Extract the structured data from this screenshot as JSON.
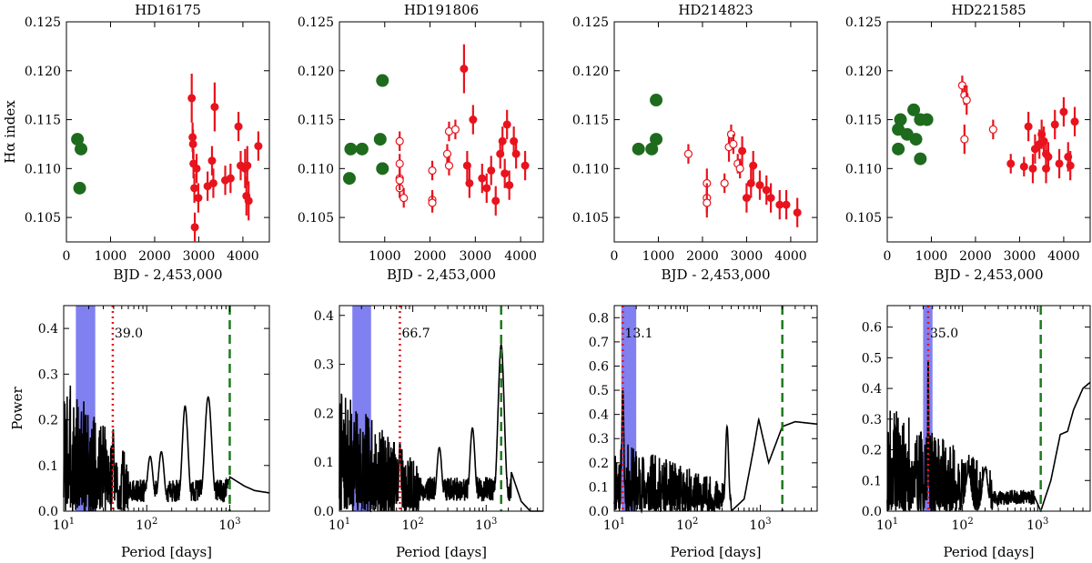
{
  "figure": {
    "colors": {
      "green": "#1e6b1e",
      "red": "#e8131d",
      "band": "#8080f0",
      "period_line": "#e8131d",
      "baseline_line": "#1e7a1e",
      "curve": "#000000"
    }
  },
  "chart_data": [
    {
      "type": "scatter",
      "title": "HD16175",
      "xlabel": "BJD - 2,453,000",
      "ylabel": "Hα index",
      "xlim": [
        0,
        4600
      ],
      "ylim": [
        0.1025,
        0.125
      ],
      "xticks": [
        0,
        1000,
        2000,
        3000,
        4000
      ],
      "xtick_labels": [
        "0",
        "1000",
        "2000",
        "3000",
        "4000"
      ],
      "yticks": [
        0.105,
        0.11,
        0.115,
        0.12,
        0.125
      ],
      "ytick_labels": [
        "0.105",
        "0.110",
        "0.115",
        "0.120",
        "0.125"
      ],
      "series": [
        {
          "name": "green",
          "marker": "filled-large",
          "color": "green",
          "points": [
            [
              250,
              0.113
            ],
            [
              330,
              0.112
            ],
            [
              300,
              0.108
            ]
          ]
        },
        {
          "name": "red",
          "marker": "filled",
          "color": "red",
          "points": [
            [
              2840,
              0.1172,
              0.0025
            ],
            [
              2860,
              0.1132,
              0.0015
            ],
            [
              2870,
              0.1125,
              0.0015
            ],
            [
              2880,
              0.1105,
              0.0015
            ],
            [
              2900,
              0.108,
              0.0015
            ],
            [
              2910,
              0.104,
              0.0015
            ],
            [
              2950,
              0.11,
              0.0015
            ],
            [
              2990,
              0.107,
              0.0015
            ],
            [
              3200,
              0.1082,
              0.0015
            ],
            [
              3300,
              0.1108,
              0.0015
            ],
            [
              3360,
              0.1163,
              0.0025
            ],
            [
              3330,
              0.1085,
              0.0015
            ],
            [
              3600,
              0.1088,
              0.0015
            ],
            [
              3720,
              0.109,
              0.0015
            ],
            [
              3900,
              0.1143,
              0.0015
            ],
            [
              3950,
              0.1103,
              0.0015
            ],
            [
              4050,
              0.11,
              0.002
            ],
            [
              4100,
              0.1103,
              0.002
            ],
            [
              4080,
              0.1072,
              0.002
            ],
            [
              4130,
              0.1067,
              0.002
            ],
            [
              4350,
              0.1123,
              0.0015
            ]
          ]
        }
      ]
    },
    {
      "type": "scatter",
      "title": "HD191806",
      "xlabel": "BJD - 2,453,000",
      "ylabel": "",
      "xlim": [
        0,
        4500
      ],
      "ylim": [
        0.1025,
        0.125
      ],
      "xticks": [
        1000,
        2000,
        3000,
        4000
      ],
      "xtick_labels": [
        "1000",
        "2000",
        "3000",
        "4000"
      ],
      "yticks": [
        0.105,
        0.11,
        0.115,
        0.12,
        0.125
      ],
      "ytick_labels": [
        "0.105",
        "0.110",
        "0.115",
        "0.120",
        "0.125"
      ],
      "series": [
        {
          "name": "green",
          "marker": "filled-large",
          "color": "green",
          "points": [
            [
              250,
              0.112
            ],
            [
              220,
              0.109
            ],
            [
              500,
              0.112
            ],
            [
              950,
              0.119
            ],
            [
              900,
              0.113
            ],
            [
              950,
              0.11
            ]
          ]
        },
        {
          "name": "red-open",
          "marker": "open",
          "color": "red",
          "points": [
            [
              1330,
              0.1128,
              0.001
            ],
            [
              1330,
              0.1105,
              0.001
            ],
            [
              1330,
              0.109,
              0.001
            ],
            [
              1330,
              0.108,
              0.001
            ],
            [
              1330,
              0.1088,
              0.001
            ],
            [
              1420,
              0.107,
              0.001
            ],
            [
              2050,
              0.1098,
              0.001
            ],
            [
              2050,
              0.1068,
              0.001
            ],
            [
              2050,
              0.1065,
              0.001
            ],
            [
              2380,
              0.1115,
              0.001
            ],
            [
              2420,
              0.1138,
              0.001
            ],
            [
              2420,
              0.1103,
              0.001
            ],
            [
              2560,
              0.114,
              0.001
            ]
          ]
        },
        {
          "name": "red",
          "marker": "filled",
          "color": "red",
          "points": [
            [
              2750,
              0.1202,
              0.0025
            ],
            [
              2820,
              0.1103,
              0.0015
            ],
            [
              2870,
              0.1085,
              0.0015
            ],
            [
              2950,
              0.115,
              0.0015
            ],
            [
              3150,
              0.109,
              0.0015
            ],
            [
              3250,
              0.108,
              0.0015
            ],
            [
              3350,
              0.1098,
              0.0015
            ],
            [
              3450,
              0.1067,
              0.0015
            ],
            [
              3550,
              0.1115,
              0.0015
            ],
            [
              3600,
              0.1128,
              0.0015
            ],
            [
              3650,
              0.1095,
              0.0015
            ],
            [
              3700,
              0.1145,
              0.0015
            ],
            [
              3750,
              0.1083,
              0.0015
            ],
            [
              3850,
              0.1128,
              0.0015
            ],
            [
              3900,
              0.1115,
              0.0015
            ],
            [
              4100,
              0.1103,
              0.0015
            ]
          ]
        }
      ]
    },
    {
      "type": "scatter",
      "title": "HD214823",
      "xlabel": "BJD - 2,453,000",
      "ylabel": "",
      "xlim": [
        0,
        4600
      ],
      "ylim": [
        0.1025,
        0.125
      ],
      "xticks": [
        0,
        1000,
        2000,
        3000,
        4000
      ],
      "xtick_labels": [
        "0",
        "1000",
        "2000",
        "3000",
        "4000"
      ],
      "yticks": [
        0.105,
        0.11,
        0.115,
        0.12,
        0.125
      ],
      "ytick_labels": [
        "0.105",
        "0.110",
        "0.115",
        "0.120",
        "0.125"
      ],
      "series": [
        {
          "name": "green",
          "marker": "filled-large",
          "color": "green",
          "points": [
            [
              550,
              0.112
            ],
            [
              850,
              0.112
            ],
            [
              950,
              0.117
            ],
            [
              950,
              0.113
            ]
          ]
        },
        {
          "name": "red-open",
          "marker": "open",
          "color": "red",
          "points": [
            [
              1680,
              0.1115,
              0.001
            ],
            [
              2100,
              0.1085,
              0.0015
            ],
            [
              2100,
              0.107,
              0.0015
            ],
            [
              2100,
              0.1065,
              0.0015
            ],
            [
              2500,
              0.1085,
              0.001
            ],
            [
              2600,
              0.1122,
              0.0015
            ],
            [
              2650,
              0.1135,
              0.001
            ],
            [
              2700,
              0.1125,
              0.001
            ],
            [
              2800,
              0.1105,
              0.001
            ],
            [
              2850,
              0.11,
              0.001
            ]
          ]
        },
        {
          "name": "red",
          "marker": "filled",
          "color": "red",
          "points": [
            [
              2900,
              0.1118,
              0.0015
            ],
            [
              3000,
              0.107,
              0.0015
            ],
            [
              3100,
              0.1085,
              0.0015
            ],
            [
              3150,
              0.1103,
              0.0015
            ],
            [
              3300,
              0.1083,
              0.0015
            ],
            [
              3450,
              0.1078,
              0.0015
            ],
            [
              3550,
              0.107,
              0.0015
            ],
            [
              3750,
              0.1063,
              0.0015
            ],
            [
              3900,
              0.1063,
              0.0015
            ],
            [
              4150,
              0.1055,
              0.0015
            ]
          ]
        }
      ]
    },
    {
      "type": "scatter",
      "title": "HD221585",
      "xlabel": "BJD - 2,453,000",
      "ylabel": "",
      "xlim": [
        0,
        4600
      ],
      "ylim": [
        0.1025,
        0.125
      ],
      "xticks": [
        0,
        1000,
        2000,
        3000,
        4000
      ],
      "xtick_labels": [
        "0",
        "1000",
        "2000",
        "3000",
        "4000"
      ],
      "yticks": [
        0.105,
        0.11,
        0.115,
        0.12,
        0.125
      ],
      "ytick_labels": [
        "0.105",
        "0.110",
        "0.115",
        "0.120",
        "0.125"
      ],
      "series": [
        {
          "name": "green",
          "marker": "filled-large",
          "color": "green",
          "points": [
            [
              250,
              0.114
            ],
            [
              300,
              0.115
            ],
            [
              250,
              0.112
            ],
            [
              450,
              0.1135
            ],
            [
              600,
              0.116
            ],
            [
              650,
              0.113
            ],
            [
              750,
              0.115
            ],
            [
              900,
              0.115
            ],
            [
              750,
              0.111
            ]
          ]
        },
        {
          "name": "red-open",
          "marker": "open",
          "color": "red",
          "points": [
            [
              1700,
              0.1185,
              0.001
            ],
            [
              1750,
              0.1175,
              0.001
            ],
            [
              1800,
              0.117,
              0.0015
            ],
            [
              1750,
              0.113,
              0.0015
            ],
            [
              2400,
              0.114,
              0.001
            ]
          ]
        },
        {
          "name": "red",
          "marker": "filled",
          "color": "red",
          "points": [
            [
              2800,
              0.1105,
              0.001
            ],
            [
              3100,
              0.1102,
              0.001
            ],
            [
              3200,
              0.1143,
              0.0015
            ],
            [
              3300,
              0.11,
              0.0015
            ],
            [
              3350,
              0.112,
              0.0015
            ],
            [
              3450,
              0.1125,
              0.0015
            ],
            [
              3500,
              0.1135,
              0.0015
            ],
            [
              3550,
              0.1128,
              0.0015
            ],
            [
              3600,
              0.1115,
              0.0015
            ],
            [
              3650,
              0.1112,
              0.0015
            ],
            [
              3600,
              0.11,
              0.0015
            ],
            [
              3800,
              0.1145,
              0.0015
            ],
            [
              3900,
              0.1105,
              0.0015
            ],
            [
              4000,
              0.1158,
              0.0015
            ],
            [
              4100,
              0.1112,
              0.0015
            ],
            [
              4150,
              0.1103,
              0.0015
            ],
            [
              4250,
              0.1148,
              0.0015
            ]
          ]
        }
      ]
    },
    {
      "type": "line",
      "title": "",
      "xlabel": "Period [days]",
      "ylabel": "Power",
      "xscale": "log",
      "xlim": [
        10,
        3000
      ],
      "ylim": [
        0,
        0.45
      ],
      "yticks": [
        0,
        0.1,
        0.2,
        0.3,
        0.4
      ],
      "ytick_labels": [
        "0.0",
        "0.1",
        "0.2",
        "0.3",
        "0.4"
      ],
      "band": [
        14,
        24
      ],
      "period": 39.0,
      "period_label": "39.0",
      "baseline": 1000,
      "curve": {
        "seed": 3,
        "noise_max": 0.3,
        "noise_end": 60,
        "peaks": [
          [
            39.5,
            0.18,
            0.012
          ],
          [
            110,
            0.12,
            0.05
          ],
          [
            150,
            0.13,
            0.05
          ],
          [
            290,
            0.23,
            0.05
          ],
          [
            550,
            0.25,
            0.06
          ],
          [
            1000,
            0.07,
            0.05
          ]
        ],
        "tail": [
          [
            1000,
            0.075
          ],
          [
            1500,
            0.055
          ],
          [
            2000,
            0.045
          ],
          [
            3000,
            0.04
          ]
        ]
      }
    },
    {
      "type": "line",
      "title": "",
      "xlabel": "Period [days]",
      "ylabel": "",
      "xscale": "log",
      "xlim": [
        10,
        6000
      ],
      "ylim": [
        0,
        0.42
      ],
      "yticks": [
        0,
        0.1,
        0.2,
        0.3,
        0.4
      ],
      "ytick_labels": [
        "0.0",
        "0.1",
        "0.2",
        "0.3",
        "0.4"
      ],
      "band": [
        15,
        27
      ],
      "period": 66.7,
      "period_label": "66.7",
      "baseline": 1600,
      "curve": {
        "seed": 7,
        "noise_max": 0.25,
        "noise_end": 120,
        "peaks": [
          [
            66.7,
            0.14,
            0.02
          ],
          [
            230,
            0.13,
            0.05
          ],
          [
            650,
            0.17,
            0.05
          ],
          [
            1600,
            0.34,
            0.06
          ]
        ],
        "tail": [
          [
            2200,
            0.08
          ],
          [
            3000,
            0.02
          ],
          [
            4000,
            0.0
          ],
          [
            6000,
            0.0
          ]
        ]
      }
    },
    {
      "type": "line",
      "title": "",
      "xlabel": "Period [days]",
      "ylabel": "",
      "xscale": "log",
      "xlim": [
        10,
        6000
      ],
      "ylim": [
        0,
        0.85
      ],
      "yticks": [
        0,
        0.1,
        0.2,
        0.3,
        0.4,
        0.5,
        0.6,
        0.7,
        0.8
      ],
      "ytick_labels": [
        "0.0",
        "0.1",
        "0.2",
        "0.3",
        "0.4",
        "0.5",
        "0.6",
        "0.7",
        "0.8"
      ],
      "band": [
        12.5,
        20
      ],
      "period": 13.1,
      "period_label": "13.1",
      "baseline": 2000,
      "curve": {
        "seed": 11,
        "noise_max": 0.3,
        "noise_end": 330,
        "peaks": [
          [
            13.1,
            0.5,
            0.02
          ],
          [
            350,
            0.35,
            0.03
          ]
        ],
        "tail": [
          [
            400,
            0.0
          ],
          [
            600,
            0.05
          ],
          [
            800,
            0.25
          ],
          [
            950,
            0.38
          ],
          [
            1300,
            0.2
          ],
          [
            1500,
            0.25
          ],
          [
            2000,
            0.35
          ],
          [
            3000,
            0.37
          ],
          [
            6000,
            0.36
          ]
        ]
      }
    },
    {
      "type": "line",
      "title": "",
      "xlabel": "Period [days]",
      "ylabel": "",
      "xscale": "log",
      "xlim": [
        10,
        5000
      ],
      "ylim": [
        0,
        0.67
      ],
      "yticks": [
        0,
        0.1,
        0.2,
        0.3,
        0.4,
        0.5,
        0.6
      ],
      "ytick_labels": [
        "0.0",
        "0.1",
        "0.2",
        "0.3",
        "0.4",
        "0.5",
        "0.6"
      ],
      "band": [
        30,
        40
      ],
      "period": 35.0,
      "period_label": "35.0",
      "baseline": 1100,
      "curve": {
        "seed": 19,
        "noise_max": 0.35,
        "noise_end": 250,
        "peaks": [
          [
            35,
            0.5,
            0.01
          ],
          [
            120,
            0.13,
            0.05
          ],
          [
            200,
            0.14,
            0.05
          ]
        ],
        "tail": [
          [
            900,
            0.05
          ],
          [
            1100,
            0.0
          ],
          [
            1500,
            0.1
          ],
          [
            2000,
            0.25
          ],
          [
            2500,
            0.26
          ],
          [
            3000,
            0.33
          ],
          [
            4000,
            0.4
          ],
          [
            5000,
            0.42
          ]
        ]
      }
    }
  ]
}
